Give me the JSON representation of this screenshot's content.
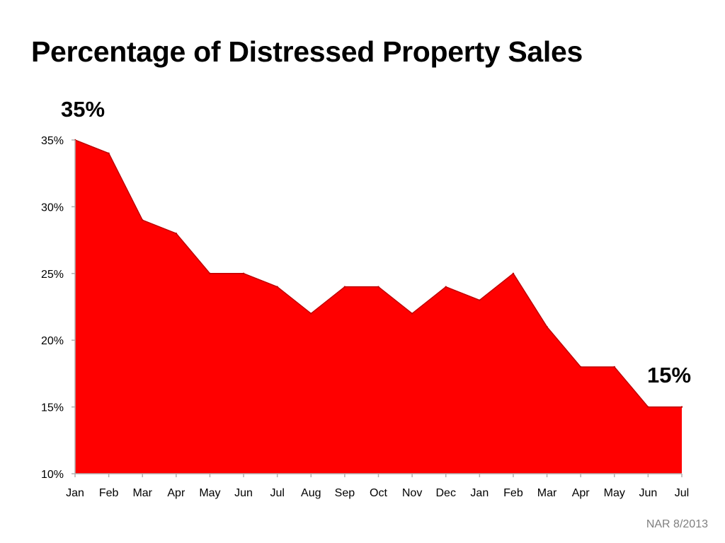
{
  "title": "Percentage of Distressed Property Sales",
  "callouts": {
    "start": "35%",
    "end": "15%"
  },
  "source": "NAR 8/2013",
  "colors": {
    "area_fill": "#ff0000",
    "area_stroke": "#c00000",
    "axis": "#b0b0b0"
  },
  "chart_data": {
    "type": "area",
    "title": "Percentage of Distressed Property Sales",
    "xlabel": "",
    "ylabel": "",
    "categories": [
      "Jan",
      "Feb",
      "Mar",
      "Apr",
      "May",
      "Jun",
      "Jul",
      "Aug",
      "Sep",
      "Oct",
      "Nov",
      "Dec",
      "Jan",
      "Feb",
      "Mar",
      "Apr",
      "May",
      "Jun",
      "Jul"
    ],
    "series": [
      {
        "values": [
          35,
          34,
          29,
          28,
          25,
          25,
          24,
          22,
          24,
          24,
          22,
          24,
          23,
          25,
          21,
          18,
          18,
          15,
          15
        ]
      }
    ],
    "ylim": [
      10,
      35
    ],
    "yticks": [
      35,
      30,
      25,
      20,
      15,
      10
    ],
    "ytick_labels": [
      "35%",
      "30%",
      "25%",
      "20%",
      "15%",
      "10%"
    ],
    "grid": false,
    "legend": "none"
  }
}
